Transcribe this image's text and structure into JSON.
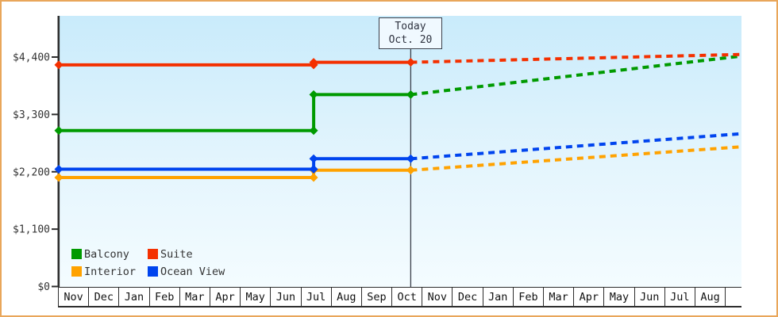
{
  "window": {
    "frame_border_color": "#e9a65a",
    "plot_bg_top_color": "#c9ebfb",
    "plot_bg_bottom_color": "#f4fcff"
  },
  "today_box": {
    "line1": "Today",
    "line2": "Oct. 20"
  },
  "chart_data": {
    "type": "line",
    "description": "Step-line price history per cabin category with dashed projected prices after today (Oct. 20)",
    "x_axis": {
      "months": [
        "Nov",
        "Dec",
        "Jan",
        "Feb",
        "Mar",
        "Apr",
        "May",
        "Jun",
        "Jul",
        "Aug",
        "Sep",
        "Oct",
        "Nov",
        "Dec",
        "Jan",
        "Feb",
        "Mar",
        "Apr",
        "May",
        "Jun",
        "Jul",
        "Aug"
      ],
      "units_note": "x values below are in month-cell units; 0 = left axis (Nov), 8.4 = early Jul price change, 11.6 = today (Oct. 20), 22.5 = right edge (end of Aug)",
      "x_max": 22.5
    },
    "y_axis": {
      "ticks": [
        {
          "label": "$0",
          "value": 0
        },
        {
          "label": "$1,100",
          "value": 1100
        },
        {
          "label": "$2,200",
          "value": 2200
        },
        {
          "label": "$3,300",
          "value": 3300
        },
        {
          "label": "$4,400",
          "value": 4400
        }
      ],
      "top_tick_value": 4400
    },
    "today_x": 11.6,
    "grid": false,
    "legend_position": "bottom-left",
    "series": [
      {
        "name": "Balcony",
        "color": "#009a00",
        "solid_points": [
          [
            0,
            2990
          ],
          [
            8.4,
            2990
          ],
          [
            8.4,
            3680
          ],
          [
            11.6,
            3680
          ]
        ],
        "dashed_points": [
          [
            11.6,
            3680
          ],
          [
            22.5,
            4420
          ]
        ],
        "markers": [
          [
            0,
            2990
          ],
          [
            8.4,
            2990
          ],
          [
            8.4,
            3680
          ],
          [
            11.6,
            3680
          ]
        ]
      },
      {
        "name": "Suite",
        "color": "#f43000",
        "solid_points": [
          [
            0,
            4250
          ],
          [
            8.4,
            4250
          ],
          [
            8.4,
            4300
          ],
          [
            11.6,
            4300
          ]
        ],
        "dashed_points": [
          [
            11.6,
            4300
          ],
          [
            22.5,
            4450
          ]
        ],
        "markers": [
          [
            0,
            4250
          ],
          [
            8.4,
            4250
          ],
          [
            8.4,
            4300
          ],
          [
            11.6,
            4300
          ]
        ]
      },
      {
        "name": "Interior",
        "color": "#ffa200",
        "solid_points": [
          [
            0,
            2090
          ],
          [
            8.4,
            2090
          ],
          [
            8.4,
            2230
          ],
          [
            11.6,
            2230
          ]
        ],
        "dashed_points": [
          [
            11.6,
            2230
          ],
          [
            22.5,
            2680
          ]
        ],
        "markers": [
          [
            0,
            2090
          ],
          [
            8.4,
            2090
          ],
          [
            8.4,
            2230
          ],
          [
            11.6,
            2230
          ]
        ]
      },
      {
        "name": "Ocean View",
        "color": "#0044ee",
        "solid_points": [
          [
            0,
            2250
          ],
          [
            8.4,
            2250
          ],
          [
            8.4,
            2450
          ],
          [
            11.6,
            2450
          ]
        ],
        "dashed_points": [
          [
            11.6,
            2450
          ],
          [
            22.5,
            2930
          ]
        ],
        "markers": [
          [
            0,
            2250
          ],
          [
            8.4,
            2250
          ],
          [
            8.4,
            2450
          ],
          [
            11.6,
            2450
          ]
        ]
      }
    ]
  }
}
